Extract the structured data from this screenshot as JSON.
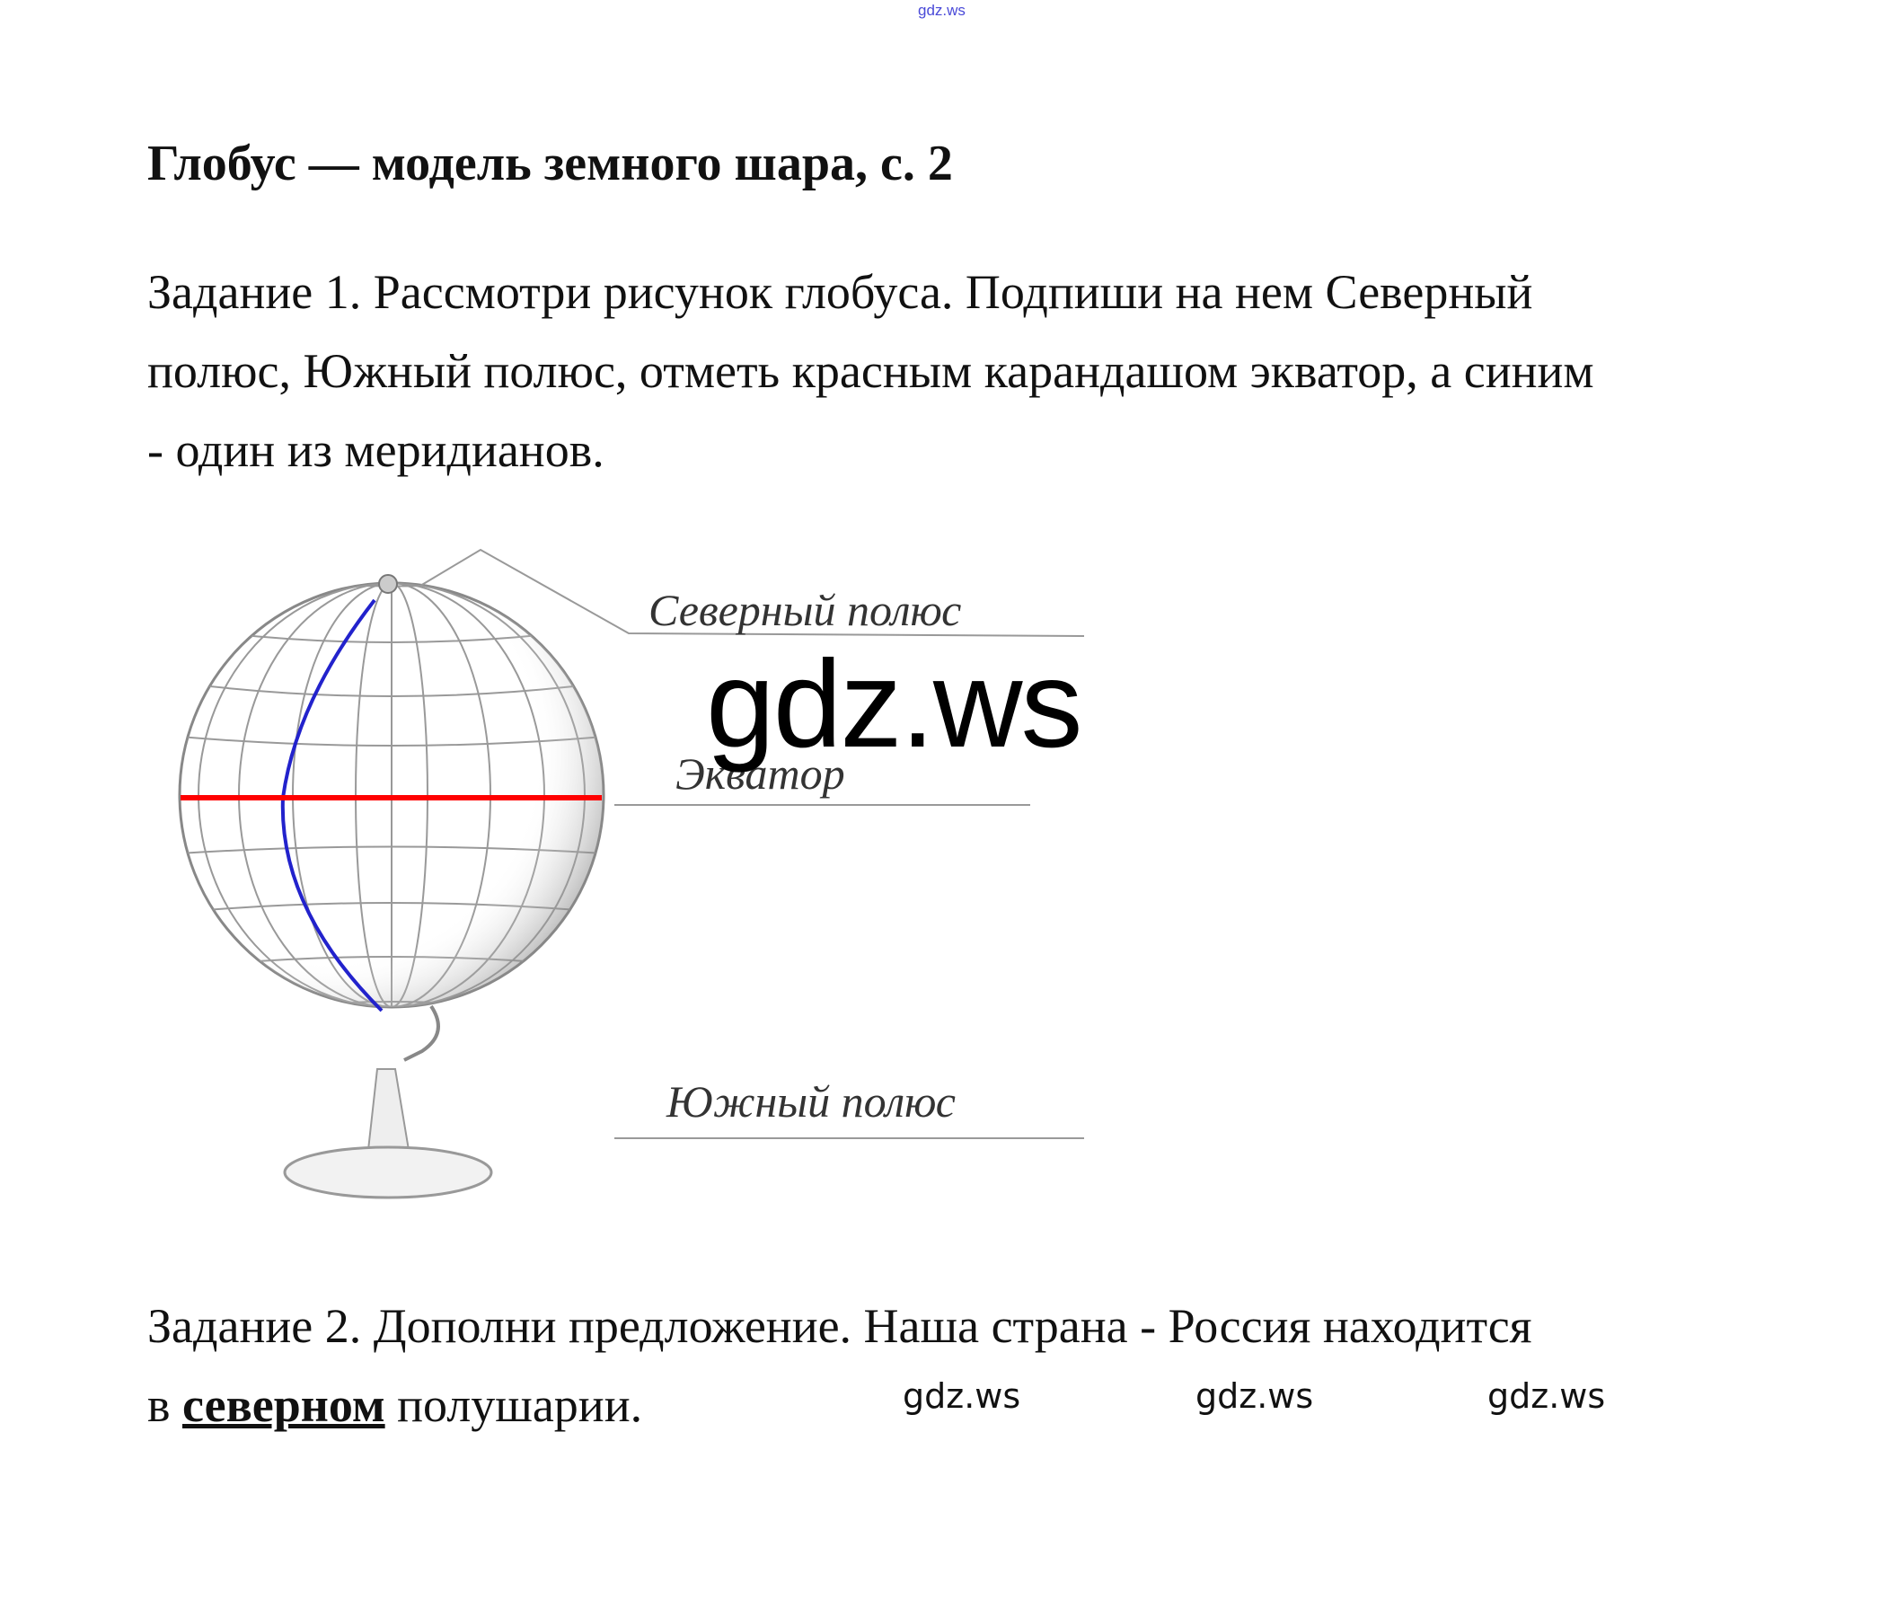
{
  "watermark_top": "gdz.ws",
  "title": "Глобус — модель земного шара, с. 2",
  "task1": {
    "lines": [
      "Задание 1. Рассмотри рисунок глобуса. Подпиши на нем Северный",
      "полюс, Южный полюс, отметь красным карандашом экватор, а синим",
      "- один из меридианов."
    ]
  },
  "figure": {
    "labels": {
      "north_pole": "Северный полюс",
      "equator": "Экватор",
      "south_pole": "Южный полюс"
    },
    "equator_color": "#ff0000",
    "meridian_color": "#2222cc"
  },
  "watermark_big": "gdz.ws",
  "task2": {
    "prefix": "Задание 2. Дополни предложение. Наша страна - Россия находится",
    "before": "в ",
    "answer": "северном",
    "after": " полушарии."
  },
  "watermarks_bottom": [
    "gdz.ws",
    "gdz.ws",
    "gdz.ws"
  ]
}
